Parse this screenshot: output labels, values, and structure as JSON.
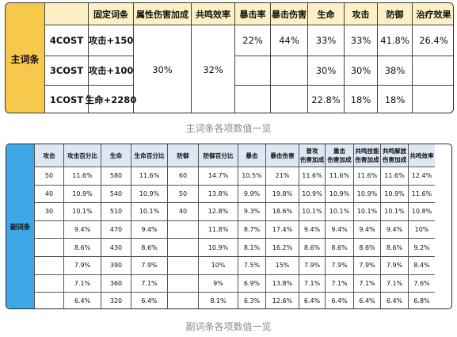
{
  "main": {
    "side_label": "主词条",
    "headers": [
      "",
      "固定词条",
      "属性伤害加成",
      "共鸣效率",
      "暴击率",
      "暴击伤害",
      "生命",
      "攻击",
      "防御",
      "治疗效果"
    ],
    "rows": [
      [
        "4COST",
        "攻击+150",
        "",
        "",
        "22%",
        "44%",
        "33%",
        "33%",
        "41.8%",
        "26.4%"
      ],
      [
        "3COST",
        "攻击+100",
        "",
        "",
        "",
        "",
        "30%",
        "30%",
        "38%",
        ""
      ],
      [
        "1COST",
        "生命+2280",
        "",
        "",
        "",
        "",
        "22.8%",
        "18%",
        "18%",
        ""
      ]
    ],
    "merged": {
      "elem_dmg": "30%",
      "resonance": "32%"
    },
    "caption": "主词条各项数值一览"
  },
  "sub": {
    "side_label": "副词条",
    "headers": [
      "攻击",
      "攻击百分比",
      "生命",
      "生命百分比",
      "防御",
      "防御百分比",
      "暴击",
      "暴击伤害",
      "普攻|伤害加成",
      "重击|伤害加成",
      "共鸣技能|伤害加成",
      "共鸣解放|伤害加成",
      "共鸣效率"
    ],
    "rows": [
      [
        "50",
        "11.6%",
        "580",
        "11.6%",
        "60",
        "14.7%",
        "10.5%",
        "21%",
        "11.6%",
        "11.6%",
        "11.6%",
        "11.6%",
        "12.4%"
      ],
      [
        "40",
        "10.9%",
        "540",
        "10.9%",
        "50",
        "13.8%",
        "9.9%",
        "19.8%",
        "10.9%",
        "10.9%",
        "10.9%",
        "10.9%",
        "11.6%"
      ],
      [
        "30",
        "10.1%",
        "510",
        "10.1%",
        "40",
        "12.8%",
        "9.3%",
        "18.6%",
        "10.1%",
        "10.1%",
        "10.1%",
        "10.1%",
        "10.8%"
      ],
      [
        "",
        "9.4%",
        "470",
        "9.4%",
        "",
        "11.8%",
        "8.7%",
        "17.4%",
        "9.4%",
        "9.4%",
        "9.4%",
        "9.4%",
        "10%"
      ],
      [
        "",
        "8.6%",
        "430",
        "8.6%",
        "",
        "10.9%",
        "8.1%",
        "16.2%",
        "8.6%",
        "8.6%",
        "8.6%",
        "8.6%",
        "9.2%"
      ],
      [
        "",
        "7.9%",
        "390",
        "7.9%",
        "",
        "10%",
        "7.5%",
        "15%",
        "7.9%",
        "7.9%",
        "7.9%",
        "7.9%",
        "8.4%"
      ],
      [
        "",
        "7.1%",
        "360",
        "7.1%",
        "",
        "9%",
        "6.9%",
        "13.8%",
        "7.1%",
        "7.1%",
        "7.1%",
        "7.1%",
        "7.6%"
      ],
      [
        "",
        "6.4%",
        "320",
        "6.4%",
        "",
        "8.1%",
        "6.3%",
        "12.6%",
        "6.4%",
        "6.4%",
        "6.4%",
        "6.4%",
        "6.8%"
      ]
    ],
    "caption": "副词条各项数值一览"
  }
}
